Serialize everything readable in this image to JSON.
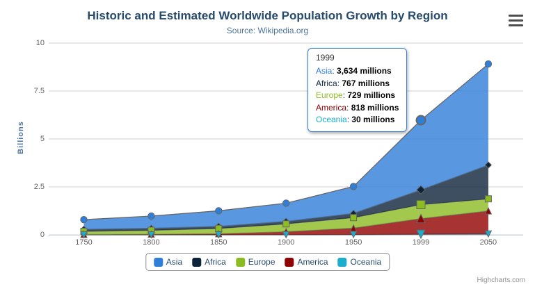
{
  "chart": {
    "title": "Historic and Estimated Worldwide Population Growth by Region",
    "subtitle": "Source: Wikipedia.org",
    "credits": "Highcharts.com",
    "y_axis_title": "Billions"
  },
  "chart_data": {
    "type": "area",
    "stacking": "normal",
    "title": "Historic and Estimated Worldwide Population Growth by Region",
    "subtitle": "Source: Wikipedia.org",
    "categories": [
      "1750",
      "1800",
      "1850",
      "1900",
      "1950",
      "1999",
      "2050"
    ],
    "xlabel": "",
    "ylabel": "Billions",
    "unit": "millions",
    "ylim": [
      0,
      10
    ],
    "yticks": [
      0,
      2.5,
      5,
      7.5,
      10
    ],
    "ytick_labels": [
      "0",
      "2.5",
      "5",
      "7.5",
      "10"
    ],
    "grid": true,
    "legend_position": "bottom",
    "series": [
      {
        "name": "Asia",
        "color": "#2f7ed8",
        "marker": "circle",
        "values": [
          502,
          635,
          809,
          947,
          1402,
          3634,
          5268
        ]
      },
      {
        "name": "Africa",
        "color": "#0d233a",
        "marker": "diamond",
        "values": [
          106,
          107,
          111,
          133,
          221,
          767,
          1766
        ]
      },
      {
        "name": "Europe",
        "color": "#8bbc21",
        "marker": "square",
        "values": [
          163,
          203,
          276,
          408,
          547,
          729,
          628
        ]
      },
      {
        "name": "America",
        "color": "#910000",
        "marker": "triangle",
        "values": [
          18,
          31,
          54,
          156,
          339,
          818,
          1201
        ]
      },
      {
        "name": "Oceania",
        "color": "#1aadce",
        "marker": "triangle-down",
        "values": [
          2,
          2,
          2,
          6,
          13,
          30,
          46
        ]
      }
    ],
    "stack_order_bottom_to_top": [
      "Oceania",
      "America",
      "Europe",
      "Africa",
      "Asia"
    ],
    "hovered_category": "1999",
    "hovered_index": 5
  },
  "tooltip": {
    "header": "1999",
    "border_color": "#2f7ed8",
    "rows": [
      {
        "name": "Asia",
        "value": "3,634 millions"
      },
      {
        "name": "Africa",
        "value": "767 millions"
      },
      {
        "name": "Europe",
        "value": "729 millions"
      },
      {
        "name": "America",
        "value": "818 millions"
      },
      {
        "name": "Oceania",
        "value": "30 millions"
      }
    ]
  },
  "legend": {
    "items": [
      "Asia",
      "Africa",
      "Europe",
      "America",
      "Oceania"
    ]
  },
  "icons": {
    "context_menu": "hamburger-icon"
  },
  "styles": {
    "title_color": "#274b6d",
    "subtitle_color": "#4d759e",
    "axis_title_color": "#4d759e",
    "axis_label_color": "#606060",
    "legend_text_color": "#274b6d",
    "legend_border_color": "#909090",
    "grid_color": "#d2d2d2",
    "axis_line_color": "#c0d0e0",
    "series_outline_color": "#666666",
    "burger_color": "#4d4d4d",
    "credits_color": "#909090",
    "area_fill_opacity": 0.8
  }
}
